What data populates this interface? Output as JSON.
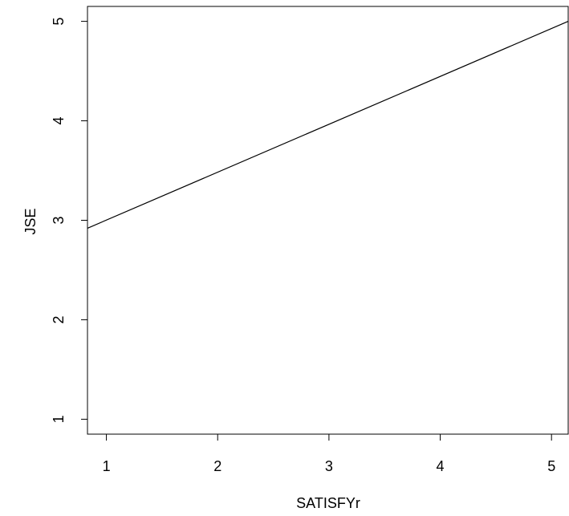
{
  "chart_data": {
    "type": "line",
    "title": "",
    "xlabel": "SATISFYr",
    "ylabel": "JSE",
    "xlim": [
      0.83,
      5.15
    ],
    "ylim": [
      0.85,
      5.15
    ],
    "xticks": [
      1,
      2,
      3,
      4,
      5
    ],
    "yticks": [
      1,
      2,
      3,
      4,
      5
    ],
    "xtick_labels": [
      "1",
      "2",
      "3",
      "4",
      "5"
    ],
    "ytick_labels": [
      "1",
      "2",
      "3",
      "4",
      "5"
    ],
    "grid": false,
    "legend": "none",
    "series": [
      {
        "x": [
          0.83,
          5.15
        ],
        "y": [
          2.92,
          5.0
        ],
        "color": "#000000"
      }
    ]
  }
}
